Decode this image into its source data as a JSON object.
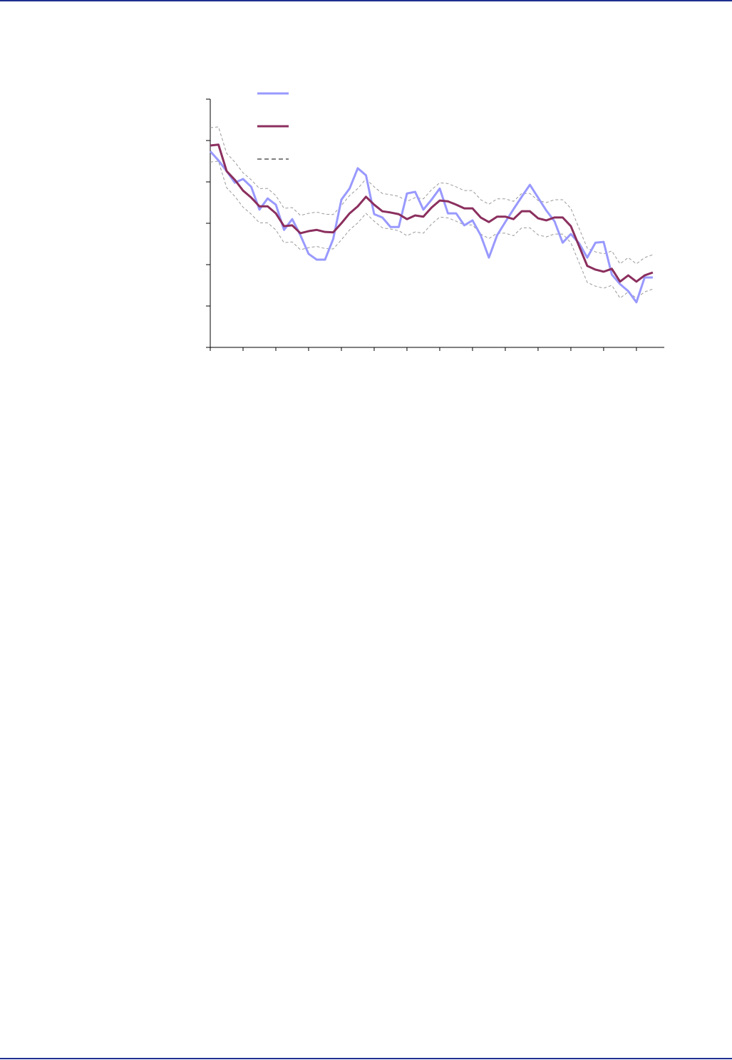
{
  "chart_data": {
    "type": "line",
    "x": [
      0,
      1,
      2,
      3,
      4,
      5,
      6,
      7,
      8,
      9,
      10,
      11,
      12,
      13,
      14,
      15,
      16,
      17,
      18,
      19,
      20,
      21,
      22,
      23,
      24,
      25,
      26,
      27,
      28,
      29,
      30,
      31,
      32,
      33,
      34,
      35,
      36,
      37,
      38,
      39,
      40,
      41,
      42,
      43,
      44,
      45,
      46,
      47,
      48,
      49,
      50,
      51,
      52,
      53,
      54
    ],
    "xlim": [
      0,
      55.4
    ],
    "xticks": [
      0,
      4,
      8,
      12,
      16,
      20,
      24,
      28,
      32,
      36,
      40,
      44,
      48,
      52
    ],
    "ylim": [
      0,
      6
    ],
    "yticks": [
      0,
      1,
      2,
      3,
      4,
      5,
      6
    ],
    "series": [
      {
        "color": "#9999ff",
        "width": 3,
        "dashed": false,
        "values": [
          4.74,
          4.52,
          4.26,
          3.98,
          4.07,
          3.88,
          3.33,
          3.6,
          3.45,
          2.84,
          3.1,
          2.71,
          2.26,
          2.12,
          2.12,
          2.62,
          3.57,
          3.84,
          4.33,
          4.16,
          3.22,
          3.14,
          2.91,
          2.91,
          3.72,
          3.76,
          3.33,
          3.57,
          3.84,
          3.24,
          3.24,
          2.95,
          3.07,
          2.71,
          2.17,
          2.71,
          3.03,
          3.34,
          3.64,
          3.93,
          3.62,
          3.31,
          3.05,
          2.53,
          2.74,
          2.52,
          2.17,
          2.53,
          2.55,
          1.76,
          1.53,
          1.36,
          1.09,
          1.69,
          1.69
        ]
      },
      {
        "color": "#8b2f5e",
        "width": 3,
        "dashed": false,
        "values": [
          4.88,
          4.9,
          4.26,
          4.05,
          3.79,
          3.62,
          3.41,
          3.41,
          3.24,
          2.93,
          2.95,
          2.76,
          2.81,
          2.84,
          2.79,
          2.78,
          3.0,
          3.24,
          3.41,
          3.64,
          3.45,
          3.29,
          3.26,
          3.22,
          3.1,
          3.19,
          3.16,
          3.38,
          3.55,
          3.53,
          3.45,
          3.36,
          3.36,
          3.14,
          3.03,
          3.16,
          3.16,
          3.1,
          3.29,
          3.29,
          3.12,
          3.07,
          3.14,
          3.14,
          2.93,
          2.45,
          1.97,
          1.88,
          1.83,
          1.9,
          1.59,
          1.74,
          1.59,
          1.74,
          1.81
        ]
      },
      {
        "color": "#9a9a9a",
        "width": 1,
        "dashed": true,
        "values": [
          5.31,
          5.33,
          4.69,
          4.48,
          4.22,
          4.05,
          3.84,
          3.84,
          3.67,
          3.36,
          3.38,
          3.19,
          3.24,
          3.27,
          3.22,
          3.21,
          3.43,
          3.67,
          3.84,
          4.07,
          3.88,
          3.72,
          3.69,
          3.65,
          3.53,
          3.62,
          3.59,
          3.81,
          3.98,
          3.96,
          3.88,
          3.79,
          3.79,
          3.57,
          3.46,
          3.59,
          3.59,
          3.53,
          3.72,
          3.72,
          3.55,
          3.5,
          3.57,
          3.57,
          3.36,
          2.88,
          2.4,
          2.31,
          2.26,
          2.33,
          2.02,
          2.17,
          2.02,
          2.17,
          2.24
        ]
      },
      {
        "color": "#9a9a9a",
        "width": 1,
        "dashed": true,
        "values": [
          4.48,
          4.5,
          3.86,
          3.65,
          3.39,
          3.22,
          3.01,
          3.01,
          2.84,
          2.53,
          2.55,
          2.36,
          2.41,
          2.44,
          2.39,
          2.38,
          2.6,
          2.84,
          3.01,
          3.24,
          3.05,
          2.89,
          2.86,
          2.82,
          2.7,
          2.79,
          2.76,
          2.98,
          3.15,
          3.13,
          3.05,
          2.96,
          2.96,
          2.74,
          2.63,
          2.76,
          2.76,
          2.7,
          2.89,
          2.89,
          2.72,
          2.67,
          2.74,
          2.74,
          2.53,
          2.05,
          1.57,
          1.48,
          1.43,
          1.5,
          1.19,
          1.34,
          1.19,
          1.34,
          1.41
        ]
      }
    ]
  }
}
